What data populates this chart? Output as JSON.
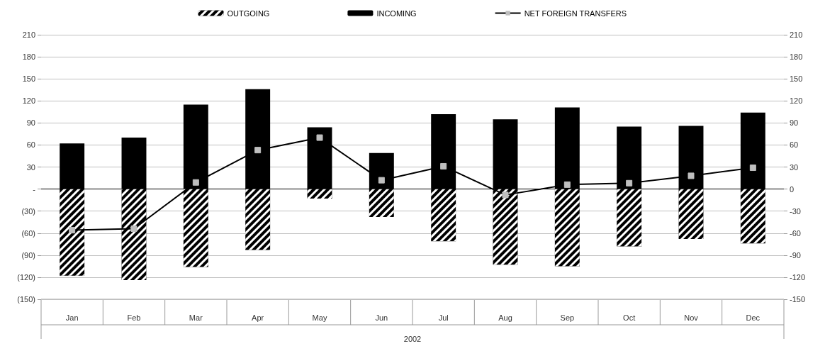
{
  "chart_data": {
    "type": "bar",
    "xlabel": "2002",
    "categories": [
      "Jan",
      "Feb",
      "Mar",
      "Apr",
      "May",
      "Jun",
      "Jul",
      "Aug",
      "Sep",
      "Oct",
      "Nov",
      "Dec"
    ],
    "stacked": true,
    "series": [
      {
        "name": "OUTGOING",
        "color": "#000000",
        "values": [
          -118,
          -124,
          -106,
          -83,
          -13,
          -38,
          -71,
          -103,
          -105,
          -78,
          -68,
          -74
        ]
      },
      {
        "name": "INCOMING",
        "color": "#000000",
        "values": [
          62,
          70,
          115,
          136,
          84,
          49,
          102,
          95,
          111,
          85,
          86,
          104
        ]
      },
      {
        "name": "NET FOREIGN TRANSFERS",
        "type": "line",
        "color": "#000000",
        "marker": "square",
        "values": [
          -56,
          -54,
          9,
          53,
          70,
          12,
          31,
          -8,
          6,
          8,
          18,
          29
        ]
      }
    ],
    "ylim": [
      -150,
      210
    ],
    "yticks": [
      {
        "value": -150,
        "label": "(150)"
      },
      {
        "value": -120,
        "label": "(120)"
      },
      {
        "value": -90,
        "label": "(90)"
      },
      {
        "value": -60,
        "label": "(60)"
      },
      {
        "value": -30,
        "label": "(30)"
      },
      {
        "value": 0,
        "label": "-"
      },
      30,
      60,
      90,
      120,
      150,
      180,
      210
    ],
    "y2lim": [
      -150,
      210
    ],
    "y2ticks": [
      -150,
      -120,
      -90,
      -60,
      -30,
      0,
      30,
      60,
      90,
      120,
      150,
      180,
      210
    ],
    "grid": "y",
    "legend": "top"
  }
}
